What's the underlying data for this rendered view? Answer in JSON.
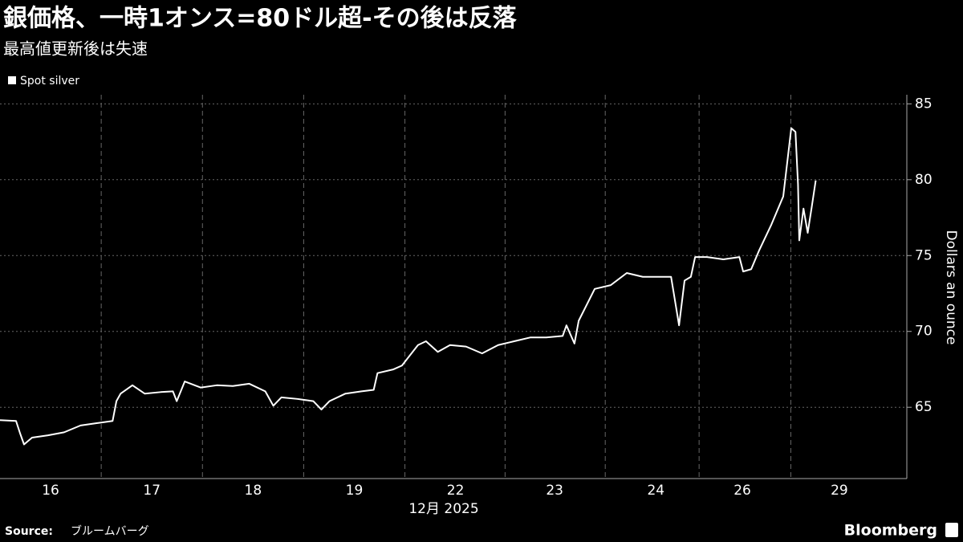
{
  "chart_data": {
    "type": "line",
    "title": "銀価格、一時1オンス=80ドル超-その後は反落",
    "subtitle": "最高値更新後は失速",
    "x_axis_label": "12月 2025",
    "y_axis_label": "Dollars an ounce",
    "source_label": "Source:",
    "source": "ブルームバーグ",
    "brand": "Bloomberg",
    "x": [
      0,
      3.8,
      4.8,
      5.7,
      7.6,
      11.4,
      15.2,
      19.1,
      22.9,
      26.7,
      27.6,
      28.6,
      31.4,
      34.3,
      38.1,
      41,
      41.9,
      43.8,
      47.6,
      51.4,
      55.2,
      59.1,
      62.9,
      64.8,
      66.7,
      70.5,
      74.3,
      76.2,
      78.1,
      81.9,
      85.7,
      88.6,
      89.5,
      93.3,
      95.3,
      99.1,
      101,
      103.8,
      106.7,
      110.5,
      114.3,
      118.1,
      121.9,
      125.7,
      129.5,
      133.4,
      134.3,
      136.2,
      137.2,
      141,
      144.8,
      148.6,
      152.4,
      156.2,
      159.1,
      161,
      162.3,
      163.8,
      164.8,
      167.6,
      171.5,
      175.3,
      176.2,
      178.1,
      180,
      182.9,
      185.7,
      187.6,
      188.6,
      189.2,
      189.5,
      190.5,
      191.5,
      192.4,
      193.4
    ],
    "series": [
      {
        "name": "Spot silver",
        "color": "#ffffff",
        "values": [
          64.15,
          64.1,
          63.25,
          62.55,
          63.0,
          63.15,
          63.35,
          63.8,
          63.95,
          64.1,
          65.4,
          65.9,
          66.45,
          65.9,
          66.0,
          66.05,
          65.4,
          66.7,
          66.3,
          66.45,
          66.4,
          66.55,
          66.05,
          65.1,
          65.65,
          65.55,
          65.4,
          64.85,
          65.4,
          65.9,
          66.05,
          66.15,
          67.25,
          67.5,
          67.75,
          69.1,
          69.35,
          68.65,
          69.1,
          69.0,
          68.55,
          69.1,
          69.35,
          69.6,
          69.6,
          69.7,
          70.4,
          69.2,
          70.7,
          72.8,
          73.05,
          73.85,
          73.6,
          73.6,
          73.6,
          70.4,
          73.35,
          73.6,
          74.9,
          74.9,
          74.75,
          74.9,
          73.95,
          74.1,
          75.35,
          77.05,
          78.9,
          83.4,
          83.15,
          79.7,
          76.0,
          78.1,
          76.5,
          78.1,
          79.95
        ]
      }
    ],
    "xlim": [
      0,
      215
    ],
    "xticks": [
      {
        "value": 12,
        "label": "16"
      },
      {
        "value": 36,
        "label": "17"
      },
      {
        "value": 60,
        "label": "18"
      },
      {
        "value": 84,
        "label": "19"
      },
      {
        "value": 108,
        "label": "22"
      },
      {
        "value": 131.5,
        "label": "23"
      },
      {
        "value": 155.5,
        "label": "24"
      },
      {
        "value": 176,
        "label": "26"
      },
      {
        "value": 199,
        "label": "29"
      }
    ],
    "ylim": [
      60.3,
      85.6
    ],
    "yticks": [
      65,
      70,
      75,
      80,
      85
    ],
    "grid": true,
    "legend": "top-left"
  }
}
